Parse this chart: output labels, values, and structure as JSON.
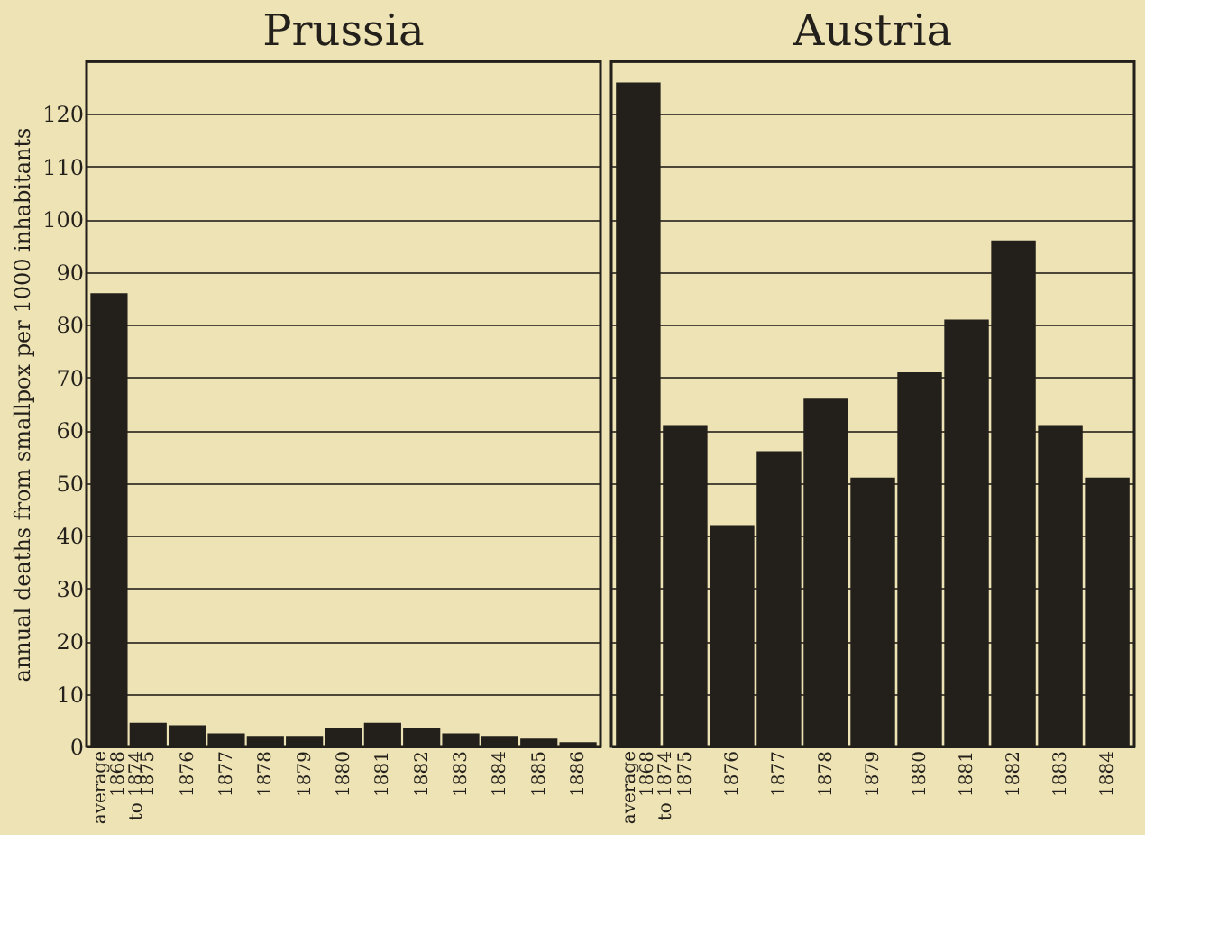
{
  "chart_data": [
    {
      "type": "bar",
      "title": "Prussia",
      "ylabel": "annual deaths from smallpox per 1000 inhabitants",
      "categories": [
        "average\n1868\nto 1874",
        "1875",
        "1876",
        "1877",
        "1878",
        "1879",
        "1880",
        "1881",
        "1882",
        "1883",
        "1884",
        "1885",
        "1886"
      ],
      "series": [
        {
          "color": "#231f1a",
          "values": [
            86,
            4.5,
            4,
            2.5,
            2,
            2,
            3.5,
            4.5,
            3.5,
            2.5,
            2,
            1.5,
            0.8
          ]
        }
      ],
      "ylim": [
        0,
        130
      ],
      "yticks": [
        0,
        10,
        20,
        30,
        40,
        50,
        60,
        70,
        80,
        90,
        100,
        110,
        120,
        {
          "value": 130,
          "label": null
        }
      ],
      "grid": "y"
    },
    {
      "type": "bar",
      "title": "Austria",
      "categories": [
        "average\n1868\nto 1874",
        "1875",
        "1876",
        "1877",
        "1878",
        "1879",
        "1880",
        "1881",
        "1882",
        "1883",
        "1884"
      ],
      "series": [
        {
          "color": "#231f1a",
          "values": [
            126,
            61,
            42,
            56,
            66,
            51,
            71,
            81,
            96,
            61,
            51
          ]
        }
      ],
      "ylim": [
        0,
        130
      ],
      "yticks": [
        0,
        10,
        20,
        30,
        40,
        50,
        60,
        70,
        80,
        90,
        100,
        110,
        120,
        {
          "value": 130,
          "label": null
        }
      ],
      "grid": "y",
      "tick_labels": "x"
    }
  ]
}
